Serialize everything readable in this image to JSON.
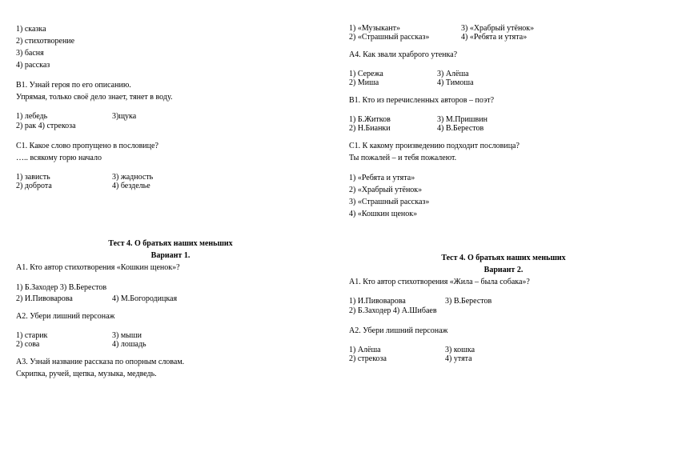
{
  "leftCol": {
    "top": {
      "l1": "1) сказка",
      "l2": "2) стихотворение",
      "l3": "3) басня",
      "l4": "4) рассказ",
      "b1h": "В1. Узнай героя по его описанию.",
      "b1t": "Упрямая, только своё дело знает, тянет в воду.",
      "b1o1": "1) лебедь",
      "b1o2": "3)щука",
      "b1o3": "2) рак 4) стрекоза",
      "c1h": "С1. Какое слово пропущено в пословице?",
      "c1t": "  ….. всякому горю начало",
      "c1o1": "1) зависть",
      "c1o2": "3) жадность",
      "c1o3": "2) доброта",
      "c1o4": "4) безделье"
    },
    "test": {
      "title1": "Тест 4. О братьях наших меньших",
      "title2": "Вариант 1.",
      "a1h": "А1. Кто автор стихотворения «Кошкин щенок»?",
      "a1o1": "1) Б.Заходер 3) В.Берестов",
      "a1o2": "2) И.Пивоварова",
      "a1o3": "4) М.Богородицкая",
      "a2h": "А2. Убери лишний персонаж",
      "a2o1": "1) старик",
      "a2o2": "3) мыши",
      "a2o3": "2) сова",
      "a2o4": "4) лошадь",
      "a3h": "А3. Узнай название рассказа по опорным словам.",
      "a3t": "Скрипка, ручей, щепка, музыка, медведь."
    }
  },
  "rightCol": {
    "top": {
      "r1a": "1) «Музыкант»",
      "r1b": "3) «Храбрый утёнок»",
      "r2a": "2) «Страшный рассказ»",
      "r2b": "4) «Ребята и утята»",
      "a4h": "А4. Как звали храброго утенка?",
      "a4o1": "1) Сережа",
      "a4o2": "3) Алёша",
      "a4o3": "2) Миша",
      "a4o4": "4) Тимоша",
      "b1h": "В1. Кто из перечисленных авторов – поэт?",
      "b1o1": "1) Б.Житков",
      "b1o2": "3) М.Пришвин",
      "b1o3": "2) Н.Бианки",
      "b1o4": "4) В.Берестов",
      "c1h": "С1. К какому произведению подходит пословица?",
      "c1t": "Ты пожалей – и тебя пожалеют.",
      "c1l1": "1) «Ребята и утята»",
      "c1l2": "2) «Храбрый утёнок»",
      "c1l3": "3) «Страшный рассказ»",
      "c1l4": "4) «Кошкин щенок»"
    },
    "test": {
      "title1": "Тест 4. О братьях наших меньших",
      "title2": "Вариант 2.",
      "a1h": "А1. Кто автор стихотворения «Жила – была собака»?",
      "a1o1": "1) И.Пивоварова",
      "a1o2": "3) В.Берестов",
      "a1o3": "2) Б.Заходер 4) А.Шибаев",
      "a2h": "А2. Убери лишний персонаж",
      "a2o1": "1) Алёша",
      "a2o2": "3) кошка",
      "a2o3": "2) стрекоза",
      "a2o4": "4) утята"
    }
  }
}
